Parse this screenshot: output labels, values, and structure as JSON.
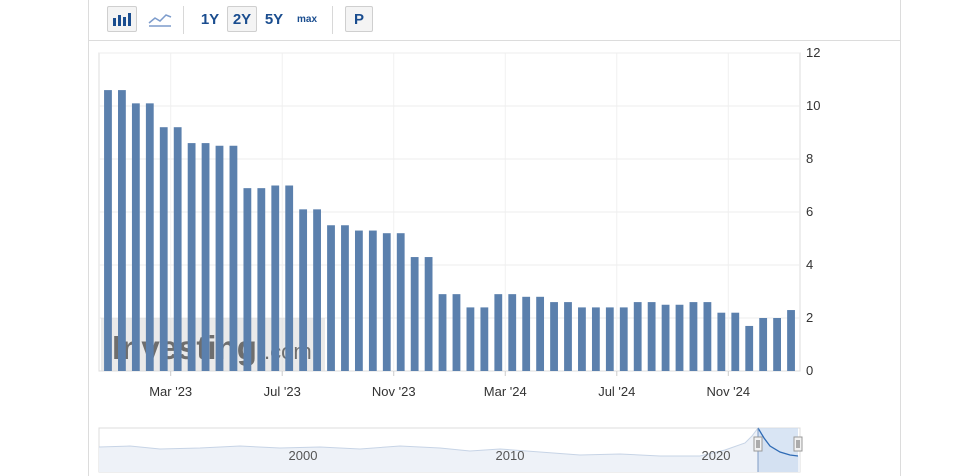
{
  "toolbar": {
    "bar_chart_icon": "bar-chart-icon",
    "line_chart_icon": "line-chart-icon",
    "ranges": [
      "1Y",
      "2Y",
      "5Y",
      "max"
    ],
    "selected_range": "2Y",
    "period_label": "P"
  },
  "watermark": {
    "brand": "Investing",
    "suffix": ".com"
  },
  "chart_data": {
    "type": "bar",
    "color": "#5b80ad",
    "ylim": [
      0,
      12
    ],
    "yticks": [
      0,
      2,
      4,
      6,
      8,
      10,
      12
    ],
    "x_tick_labels": [
      {
        "label": "Mar '23",
        "index": 2
      },
      {
        "label": "Jul '23",
        "index": 6
      },
      {
        "label": "Nov '23",
        "index": 10
      },
      {
        "label": "Mar '24",
        "index": 14
      },
      {
        "label": "Jul '24",
        "index": 18
      },
      {
        "label": "Nov '24",
        "index": 22
      }
    ],
    "values": [
      10.6,
      10.6,
      10.1,
      10.1,
      9.2,
      9.2,
      8.6,
      8.6,
      8.5,
      8.5,
      6.9,
      6.9,
      7.0,
      7.0,
      6.1,
      6.1,
      5.5,
      5.5,
      5.3,
      5.3,
      5.2,
      5.2,
      4.3,
      4.3,
      2.9,
      2.9,
      2.4,
      2.4,
      2.9,
      2.9,
      2.8,
      2.8,
      2.6,
      2.6,
      2.4,
      2.4,
      2.4,
      2.4,
      2.6,
      2.6,
      2.5,
      2.5,
      2.6,
      2.6,
      2.2,
      2.2,
      1.7,
      2.0,
      2.0,
      2.3
    ],
    "navigator": {
      "year_labels": [
        "2000",
        "2010",
        "2020"
      ]
    }
  }
}
